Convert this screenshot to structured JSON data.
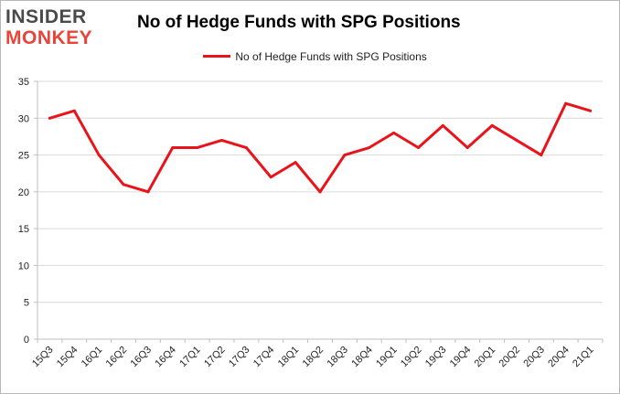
{
  "logo": {
    "line1": "INSIDER",
    "line2": "MONKEY"
  },
  "colors": {
    "series": "#e8141a",
    "grid": "#d9d9d9",
    "axis": "#bfbfbf",
    "logo_dark": "#4a4a4a",
    "logo_red": "#e8443a"
  },
  "chart_data": {
    "type": "line",
    "title": "No of Hedge Funds with SPG Positions",
    "xlabel": "",
    "ylabel": "",
    "ylim": [
      0,
      35
    ],
    "yticks": [
      0,
      5,
      10,
      15,
      20,
      25,
      30,
      35
    ],
    "grid": true,
    "legend_position": "top-center",
    "categories": [
      "15Q3",
      "15Q4",
      "16Q1",
      "16Q2",
      "16Q3",
      "16Q4",
      "17Q1",
      "17Q2",
      "17Q3",
      "17Q4",
      "18Q1",
      "18Q2",
      "18Q3",
      "18Q4",
      "19Q1",
      "19Q2",
      "19Q3",
      "19Q4",
      "20Q1",
      "20Q2",
      "20Q3",
      "20Q4",
      "21Q1"
    ],
    "series": [
      {
        "name": "No of Hedge Funds with SPG Positions",
        "values": [
          30,
          31,
          25,
          21,
          20,
          26,
          26,
          27,
          26,
          22,
          24,
          20,
          25,
          26,
          28,
          26,
          29,
          26,
          29,
          27,
          25,
          32,
          31
        ]
      }
    ]
  }
}
